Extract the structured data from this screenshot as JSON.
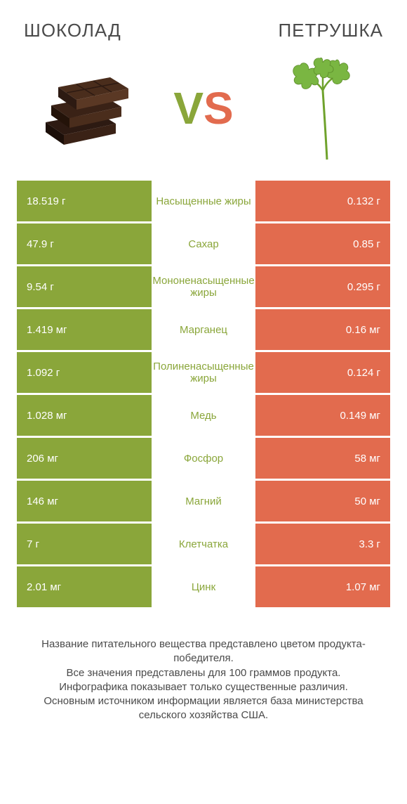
{
  "colors": {
    "left_product": "#8aa63a",
    "right_product": "#e26b4e",
    "background": "#ffffff",
    "title_text": "#4a4a4a",
    "cell_text": "#ffffff"
  },
  "left_title": "ШОКОЛАД",
  "right_title": "ПЕТРУШКА",
  "vs_v": "V",
  "vs_s": "S",
  "rows": [
    {
      "left": "18.519 г",
      "label": "Насыщенные жиры",
      "right": "0.132 г",
      "winner": "left"
    },
    {
      "left": "47.9 г",
      "label": "Сахар",
      "right": "0.85 г",
      "winner": "left"
    },
    {
      "left": "9.54 г",
      "label": "Мононенасыщенные жиры",
      "right": "0.295 г",
      "winner": "left"
    },
    {
      "left": "1.419 мг",
      "label": "Марганец",
      "right": "0.16 мг",
      "winner": "left"
    },
    {
      "left": "1.092 г",
      "label": "Полиненасыщенные жиры",
      "right": "0.124 г",
      "winner": "left"
    },
    {
      "left": "1.028 мг",
      "label": "Медь",
      "right": "0.149 мг",
      "winner": "left"
    },
    {
      "left": "206 мг",
      "label": "Фосфор",
      "right": "58 мг",
      "winner": "left"
    },
    {
      "left": "146 мг",
      "label": "Магний",
      "right": "50 мг",
      "winner": "left"
    },
    {
      "left": "7 г",
      "label": "Клетчатка",
      "right": "3.3 г",
      "winner": "left"
    },
    {
      "left": "2.01 мг",
      "label": "Цинк",
      "right": "1.07 мг",
      "winner": "left"
    }
  ],
  "footer": "Название питательного вещества представлено цветом продукта-победителя.\nВсе значения представлены для 100 граммов продукта.\nИнфографика показывает только существенные различия.\nОсновным источником информации является база министерства сельского хозяйства США."
}
